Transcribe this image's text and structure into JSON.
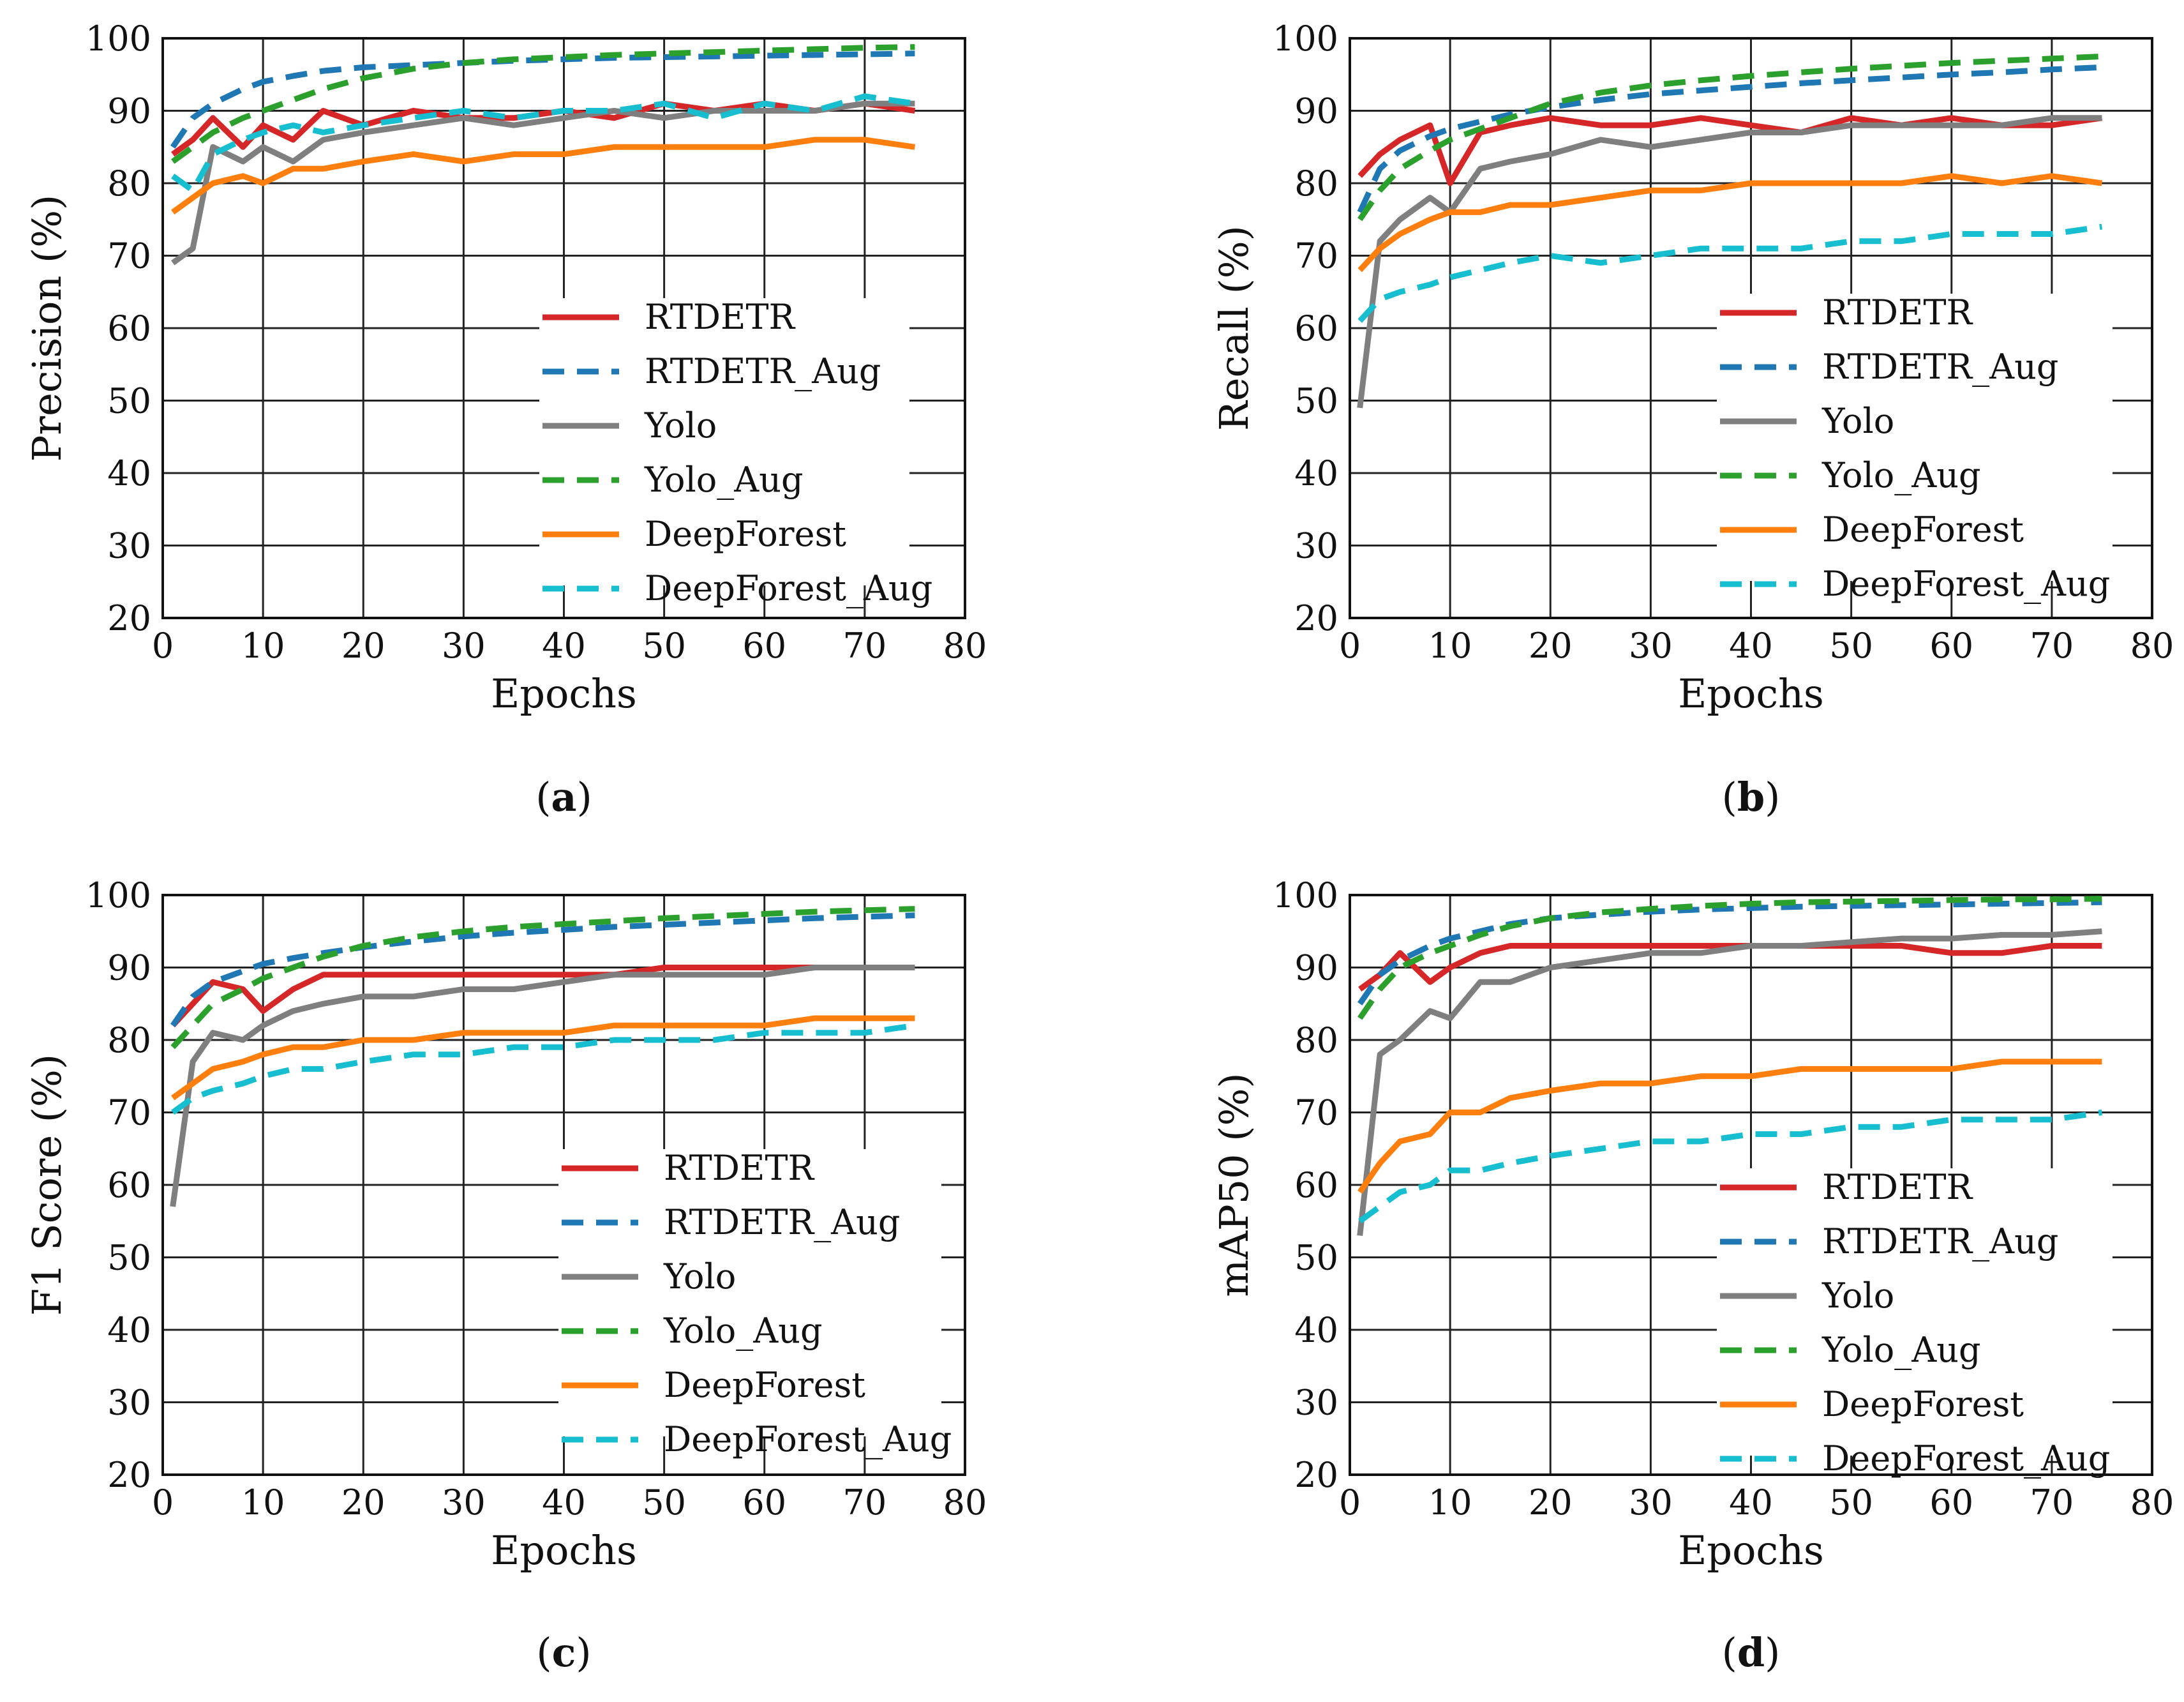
{
  "figure": {
    "series_styles": [
      {
        "name": "RTDETR",
        "color": "#d62728",
        "dashed": false
      },
      {
        "name": "RTDETR_Aug",
        "color": "#1f77b4",
        "dashed": true
      },
      {
        "name": "Yolo",
        "color": "#7f7f7f",
        "dashed": false
      },
      {
        "name": "Yolo_Aug",
        "color": "#2ca02c",
        "dashed": true
      },
      {
        "name": "DeepForest",
        "color": "#ff7f0e",
        "dashed": false
      },
      {
        "name": "DeepForest_Aug",
        "color": "#17becf",
        "dashed": true
      }
    ]
  },
  "chart_data": [
    {
      "type": "line",
      "panel": "(a)",
      "caption_letter": "a",
      "xlabel": "Epochs",
      "ylabel": "Precision (%)",
      "xlim": [
        0,
        80
      ],
      "ylim": [
        20,
        100
      ],
      "xticks": [
        "0",
        "10",
        "20",
        "30",
        "40",
        "50",
        "60",
        "70",
        "80"
      ],
      "yticks": [
        "20",
        "30",
        "40",
        "50",
        "60",
        "70",
        "80",
        "90",
        "100"
      ],
      "grid": true,
      "legend": "lower-right",
      "x": [
        1,
        3,
        5,
        8,
        10,
        13,
        16,
        20,
        25,
        30,
        35,
        40,
        45,
        50,
        55,
        60,
        65,
        70,
        75
      ],
      "series": [
        {
          "name": "RTDETR",
          "values": [
            84,
            86,
            89,
            85,
            88,
            86,
            90,
            88,
            90,
            89,
            89,
            90,
            89,
            91,
            90,
            91,
            90,
            91,
            90
          ]
        },
        {
          "name": "RTDETR_Aug",
          "values": [
            85,
            89,
            91,
            93,
            94,
            94.8,
            95.5,
            96,
            96.3,
            96.6,
            96.9,
            97.1,
            97.3,
            97.4,
            97.5,
            97.6,
            97.7,
            97.8,
            97.9
          ]
        },
        {
          "name": "Yolo",
          "values": [
            69,
            71,
            85,
            83,
            85,
            83,
            86,
            87,
            88,
            89,
            88,
            89,
            90,
            89,
            90,
            90,
            90,
            91,
            91
          ]
        },
        {
          "name": "Yolo_Aug",
          "values": [
            83,
            85,
            87,
            89,
            90,
            91.5,
            93,
            94.5,
            95.8,
            96.6,
            97.1,
            97.4,
            97.7,
            97.9,
            98.1,
            98.3,
            98.5,
            98.7,
            98.8
          ]
        },
        {
          "name": "DeepForest",
          "values": [
            76,
            78,
            80,
            81,
            80,
            82,
            82,
            83,
            84,
            83,
            84,
            84,
            85,
            85,
            85,
            85,
            86,
            86,
            85
          ]
        },
        {
          "name": "DeepForest_Aug",
          "values": [
            81,
            79,
            84,
            86,
            87,
            88,
            87,
            88,
            89,
            90,
            89,
            90,
            90,
            91,
            89,
            91,
            90,
            92,
            91
          ]
        }
      ]
    },
    {
      "type": "line",
      "panel": "(b)",
      "caption_letter": "b",
      "xlabel": "Epochs",
      "ylabel": "Recall (%)",
      "xlim": [
        0,
        80
      ],
      "ylim": [
        20,
        100
      ],
      "xticks": [
        "0",
        "10",
        "20",
        "30",
        "40",
        "50",
        "60",
        "70",
        "80"
      ],
      "yticks": [
        "20",
        "30",
        "40",
        "50",
        "60",
        "70",
        "80",
        "90",
        "100"
      ],
      "grid": true,
      "legend": "lower-right",
      "x": [
        1,
        3,
        5,
        8,
        10,
        13,
        16,
        20,
        25,
        30,
        35,
        40,
        45,
        50,
        55,
        60,
        65,
        70,
        75
      ],
      "series": [
        {
          "name": "RTDETR",
          "values": [
            81,
            84,
            86,
            88,
            80,
            87,
            88,
            89,
            88,
            88,
            89,
            88,
            87,
            89,
            88,
            89,
            88,
            88,
            89
          ]
        },
        {
          "name": "RTDETR_Aug",
          "values": [
            76,
            82,
            84.5,
            86.5,
            87.5,
            88.5,
            89.5,
            90.5,
            91.5,
            92.3,
            92.8,
            93.3,
            93.8,
            94.2,
            94.6,
            95,
            95.3,
            95.7,
            96
          ]
        },
        {
          "name": "Yolo",
          "values": [
            49,
            72,
            75,
            78,
            76,
            82,
            83,
            84,
            86,
            85,
            86,
            87,
            87,
            88,
            88,
            88,
            88,
            89,
            89
          ]
        },
        {
          "name": "Yolo_Aug",
          "values": [
            75,
            79,
            82,
            84.5,
            86,
            87.5,
            89,
            91,
            92.5,
            93.5,
            94.2,
            94.8,
            95.3,
            95.8,
            96.2,
            96.6,
            96.9,
            97.2,
            97.5
          ]
        },
        {
          "name": "DeepForest",
          "values": [
            68,
            71,
            73,
            75,
            76,
            76,
            77,
            77,
            78,
            79,
            79,
            80,
            80,
            80,
            80,
            81,
            80,
            81,
            80
          ]
        },
        {
          "name": "DeepForest_Aug",
          "values": [
            61,
            64,
            65,
            66,
            67,
            68,
            69,
            70,
            69,
            70,
            71,
            71,
            71,
            72,
            72,
            73,
            73,
            73,
            74
          ]
        }
      ]
    },
    {
      "type": "line",
      "panel": "(c)",
      "caption_letter": "c",
      "xlabel": "Epochs",
      "ylabel": "F1 Score (%)",
      "xlim": [
        0,
        80
      ],
      "ylim": [
        20,
        100
      ],
      "xticks": [
        "0",
        "10",
        "20",
        "30",
        "40",
        "50",
        "60",
        "70",
        "80"
      ],
      "yticks": [
        "20",
        "30",
        "40",
        "50",
        "60",
        "70",
        "80",
        "90",
        "100"
      ],
      "grid": true,
      "legend": "lower-right",
      "x": [
        1,
        3,
        5,
        8,
        10,
        13,
        16,
        20,
        25,
        30,
        35,
        40,
        45,
        50,
        55,
        60,
        65,
        70,
        75
      ],
      "series": [
        {
          "name": "RTDETR",
          "values": [
            82,
            85,
            88,
            87,
            84,
            87,
            89,
            89,
            89,
            89,
            89,
            89,
            89,
            90,
            90,
            90,
            90,
            90,
            90
          ]
        },
        {
          "name": "RTDETR_Aug",
          "values": [
            82,
            86,
            88,
            89.5,
            90.5,
            91.3,
            92,
            92.8,
            93.6,
            94.3,
            94.8,
            95.2,
            95.6,
            95.9,
            96.2,
            96.5,
            96.8,
            97,
            97.2
          ]
        },
        {
          "name": "Yolo",
          "values": [
            57,
            77,
            81,
            80,
            82,
            84,
            85,
            86,
            86,
            87,
            87,
            88,
            89,
            89,
            89,
            89,
            90,
            90,
            90
          ]
        },
        {
          "name": "Yolo_Aug",
          "values": [
            79,
            82,
            85,
            87,
            88.5,
            90,
            91.5,
            93,
            94.2,
            95,
            95.6,
            96,
            96.4,
            96.8,
            97.1,
            97.4,
            97.7,
            97.9,
            98.1
          ]
        },
        {
          "name": "DeepForest",
          "values": [
            72,
            74,
            76,
            77,
            78,
            79,
            79,
            80,
            80,
            81,
            81,
            81,
            82,
            82,
            82,
            82,
            83,
            83,
            83
          ]
        },
        {
          "name": "DeepForest_Aug",
          "values": [
            70,
            72,
            73,
            74,
            75,
            76,
            76,
            77,
            78,
            78,
            79,
            79,
            80,
            80,
            80,
            81,
            81,
            81,
            82
          ]
        }
      ]
    },
    {
      "type": "line",
      "panel": "(d)",
      "caption_letter": "d",
      "xlabel": "Epochs",
      "ylabel": "mAP50 (%)",
      "xlim": [
        0,
        80
      ],
      "ylim": [
        20,
        100
      ],
      "xticks": [
        "0",
        "10",
        "20",
        "30",
        "40",
        "50",
        "60",
        "70",
        "80"
      ],
      "yticks": [
        "20",
        "30",
        "40",
        "50",
        "60",
        "70",
        "80",
        "90",
        "100"
      ],
      "grid": true,
      "legend": "lower-right",
      "x": [
        1,
        3,
        5,
        8,
        10,
        13,
        16,
        20,
        25,
        30,
        35,
        40,
        45,
        50,
        55,
        60,
        65,
        70,
        75
      ],
      "series": [
        {
          "name": "RTDETR",
          "values": [
            87,
            89,
            92,
            88,
            90,
            92,
            93,
            93,
            93,
            93,
            93,
            93,
            93,
            93,
            93,
            92,
            92,
            93,
            93
          ]
        },
        {
          "name": "RTDETR_Aug",
          "values": [
            85,
            89,
            91,
            93,
            94,
            95,
            96,
            96.8,
            97.3,
            97.7,
            98,
            98.2,
            98.4,
            98.5,
            98.6,
            98.7,
            98.8,
            98.9,
            99
          ]
        },
        {
          "name": "Yolo",
          "values": [
            53,
            78,
            80,
            84,
            83,
            88,
            88,
            90,
            91,
            92,
            92,
            93,
            93,
            93.5,
            94,
            94,
            94.5,
            94.5,
            95
          ]
        },
        {
          "name": "Yolo_Aug",
          "values": [
            83,
            87,
            90,
            92,
            93,
            94.5,
            95.7,
            96.8,
            97.6,
            98.1,
            98.5,
            98.8,
            99,
            99.1,
            99.2,
            99.3,
            99.4,
            99.4,
            99.5
          ]
        },
        {
          "name": "DeepForest",
          "values": [
            59,
            63,
            66,
            67,
            70,
            70,
            72,
            73,
            74,
            74,
            75,
            75,
            76,
            76,
            76,
            76,
            77,
            77,
            77
          ]
        },
        {
          "name": "DeepForest_Aug",
          "values": [
            55,
            57,
            59,
            60,
            62,
            62,
            63,
            64,
            65,
            66,
            66,
            67,
            67,
            68,
            68,
            69,
            69,
            69,
            70
          ]
        }
      ]
    }
  ]
}
